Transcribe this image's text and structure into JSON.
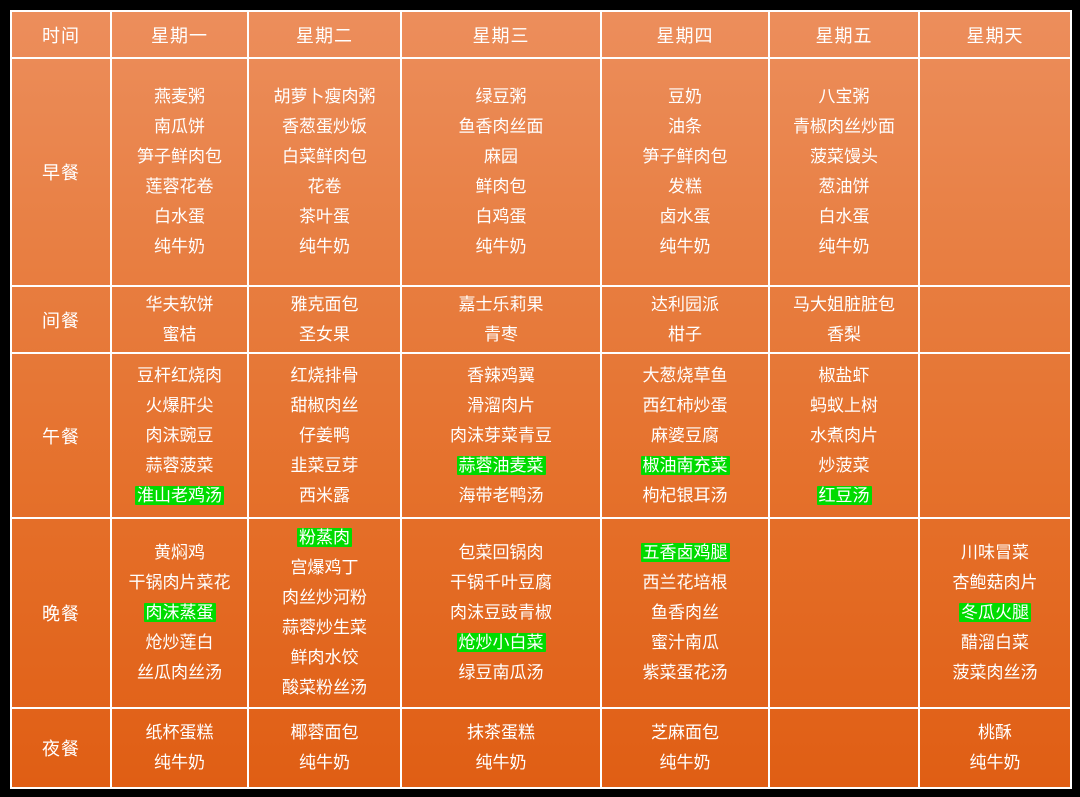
{
  "colors": {
    "frame": "#000000",
    "gradient_top": "#EC8E5C",
    "gradient_bottom": "#E05E14",
    "grid_line": "#FFFFFF",
    "text": "#FFFFFF",
    "highlight_green": "#00DB00"
  },
  "header": {
    "time_label": "时间",
    "day_keys": [
      "monday",
      "tuesday",
      "wednesday",
      "thursday",
      "friday",
      "sunday"
    ],
    "days": [
      "星期一",
      "星期二",
      "星期三",
      "星期四",
      "星期五",
      "星期天"
    ]
  },
  "rows": [
    {
      "key": "breakfast",
      "label": "早餐",
      "cells": [
        [
          "燕麦粥",
          "南瓜饼",
          "笋子鲜肉包",
          "莲蓉花卷",
          "白水蛋",
          "纯牛奶"
        ],
        [
          "胡萝卜瘦肉粥",
          "香葱蛋炒饭",
          "白菜鲜肉包",
          "花卷",
          "茶叶蛋",
          "纯牛奶"
        ],
        [
          "绿豆粥",
          "鱼香肉丝面",
          "麻园",
          "鲜肉包",
          "白鸡蛋",
          "纯牛奶"
        ],
        [
          "豆奶",
          "油条",
          "笋子鲜肉包",
          "发糕",
          "卤水蛋",
          "纯牛奶"
        ],
        [
          "八宝粥",
          "青椒肉丝炒面",
          "菠菜馒头",
          "葱油饼",
          "白水蛋",
          "纯牛奶"
        ],
        []
      ]
    },
    {
      "key": "midmeal",
      "label": "间餐",
      "cells": [
        [
          "华夫软饼",
          "蜜桔"
        ],
        [
          "雅克面包",
          "圣女果"
        ],
        [
          "嘉士乐莉果",
          "青枣"
        ],
        [
          "达利园派",
          "柑子"
        ],
        [
          "马大姐脏脏包",
          "香梨"
        ],
        []
      ]
    },
    {
      "key": "lunch",
      "label": "午餐",
      "cells": [
        [
          "豆杆红烧肉",
          "火爆肝尖",
          "肉沫豌豆",
          "蒜蓉菠菜",
          {
            "text": "淮山老鸡汤",
            "highlight": true
          }
        ],
        [
          "红烧排骨",
          "甜椒肉丝",
          "仔姜鸭",
          "韭菜豆芽",
          "西米露"
        ],
        [
          "香辣鸡翼",
          "滑溜肉片",
          "肉沫芽菜青豆",
          {
            "text": "蒜蓉油麦菜",
            "highlight": true
          },
          "海带老鸭汤"
        ],
        [
          "大葱烧草鱼",
          "西红柿炒蛋",
          "麻婆豆腐",
          {
            "text": "椒油南充菜",
            "highlight": true
          },
          "枸杞银耳汤"
        ],
        [
          "椒盐虾",
          "蚂蚁上树",
          "水煮肉片",
          "炒菠菜",
          {
            "text": "红豆汤",
            "highlight": true
          }
        ],
        []
      ]
    },
    {
      "key": "dinner",
      "label": "晚餐",
      "cells": [
        [
          "黄焖鸡",
          "干锅肉片菜花",
          {
            "text": "肉沫蒸蛋",
            "highlight": true
          },
          "炝炒莲白",
          "丝瓜肉丝汤"
        ],
        [
          {
            "text": "粉蒸肉",
            "highlight": true
          },
          "宫爆鸡丁",
          "肉丝炒河粉",
          "蒜蓉炒生菜",
          "鲜肉水饺",
          "酸菜粉丝汤"
        ],
        [
          "包菜回锅肉",
          "干锅千叶豆腐",
          "肉沫豆豉青椒",
          {
            "text": "炝炒小白菜",
            "highlight": true
          },
          "绿豆南瓜汤"
        ],
        [
          {
            "text": "五香卤鸡腿",
            "highlight": true
          },
          "西兰花培根",
          "鱼香肉丝",
          "蜜汁南瓜",
          "紫菜蛋花汤"
        ],
        [],
        [
          "川味冒菜",
          "杏鲍菇肉片",
          {
            "text": "冬瓜火腿",
            "highlight": true
          },
          "醋溜白菜",
          "菠菜肉丝汤"
        ]
      ]
    },
    {
      "key": "nightmeal",
      "label": "夜餐",
      "cells": [
        [
          "纸杯蛋糕",
          "纯牛奶"
        ],
        [
          "椰蓉面包",
          "纯牛奶"
        ],
        [
          "抹茶蛋糕",
          "纯牛奶"
        ],
        [
          "芝麻面包",
          "纯牛奶"
        ],
        [],
        [
          "桃酥",
          "纯牛奶"
        ]
      ]
    }
  ]
}
